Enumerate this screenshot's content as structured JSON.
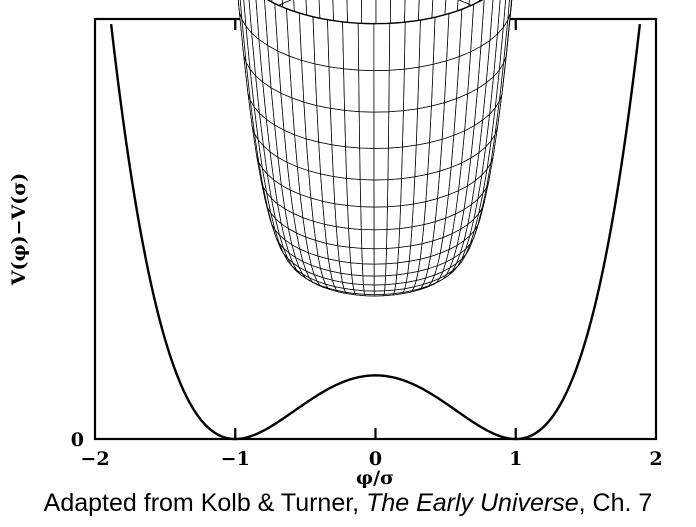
{
  "chart_data": {
    "type": "line",
    "title": "",
    "xlabel": "φ/σ",
    "ylabel": "V(φ)−V(σ)",
    "xlim": [
      -2,
      2
    ],
    "ylim": [
      0,
      1.65
    ],
    "x_ticks": [
      -2,
      -1,
      0,
      1,
      2
    ],
    "x_tick_labels": [
      "−2",
      "−1",
      "0",
      "1",
      "2"
    ],
    "y_ticks": [
      0
    ],
    "y_tick_labels": [
      "0"
    ],
    "grid": false,
    "legend": "none",
    "series": [
      {
        "function": "(x^2 - 1)^2 / 4",
        "x": [
          -1.8,
          -1.6,
          -1.4,
          -1.2,
          -1.0,
          -0.8,
          -0.6,
          -0.4,
          -0.2,
          0.0,
          0.2,
          0.4,
          0.6,
          0.8,
          1.0,
          1.2,
          1.4,
          1.6,
          1.8
        ],
        "y": [
          1.26,
          0.61,
          0.23,
          0.05,
          0.0,
          0.03,
          0.1,
          0.18,
          0.23,
          0.25,
          0.23,
          0.18,
          0.1,
          0.03,
          0.0,
          0.05,
          0.23,
          0.61,
          1.26
        ]
      }
    ],
    "inset": "3D mexican-hat potential surface (wireframe mesh)"
  },
  "caption": {
    "prefix": "Adapted from Kolb & Turner, ",
    "book_title": "The Early Universe",
    "suffix": ", Ch. 7"
  }
}
